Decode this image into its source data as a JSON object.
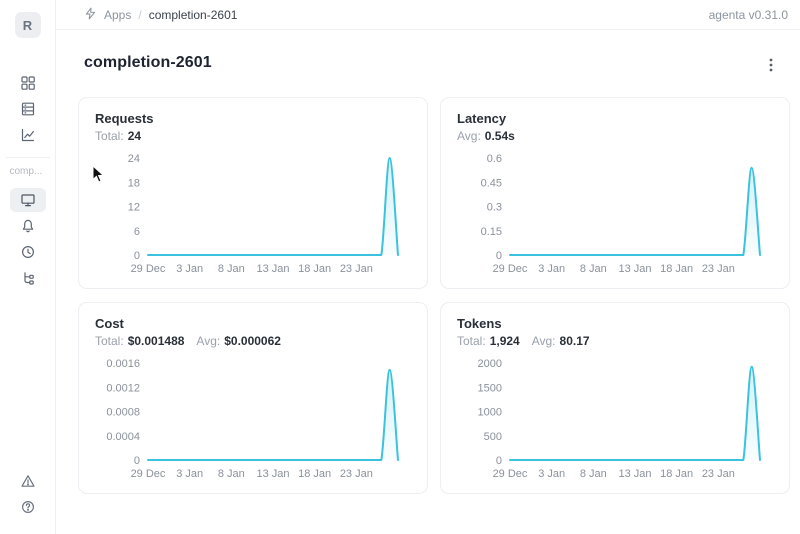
{
  "topbar": {
    "breadcrumb": {
      "icon": "zap-icon",
      "apps": "Apps",
      "separator": "/",
      "current": "completion-2601"
    },
    "version": "agenta v0.31.0"
  },
  "sidebar": {
    "avatar_letter": "R",
    "workspace_label": "comp...",
    "nav_top_icons": [
      "grid-icon",
      "table-rows-icon",
      "line-chart-icon"
    ],
    "nav_app_icons": [
      "monitor-icon (selected)",
      "bell-icon",
      "history-icon",
      "tree-icon"
    ],
    "nav_bottom_icons": [
      "warning-triangle-icon",
      "help-circle-icon"
    ]
  },
  "page": {
    "title": "completion-2601"
  },
  "colors": {
    "line": "#3ac2df",
    "fill_top": "rgba(58,194,223,0.22)",
    "fill_bottom": "rgba(58,194,223,0.03)"
  },
  "chart_data": [
    {
      "type": "area",
      "title": "Requests",
      "stats": [
        {
          "label": "Total:",
          "value": "24"
        }
      ],
      "y_ticks": [
        0,
        6,
        12,
        18,
        24
      ],
      "ylim": [
        0,
        24
      ],
      "x_ticks": [
        "29 Dec",
        "3 Jan",
        "8 Jan",
        "13 Jan",
        "18 Jan",
        "23 Jan"
      ],
      "x_tick_step_days": 5,
      "values": [
        0,
        0,
        0,
        0,
        0,
        0,
        0,
        0,
        0,
        0,
        0,
        0,
        0,
        0,
        0,
        0,
        0,
        0,
        0,
        0,
        0,
        0,
        0,
        0,
        0,
        0,
        0,
        0,
        0,
        24,
        0
      ]
    },
    {
      "type": "area",
      "title": "Latency",
      "stats": [
        {
          "label": "Avg:",
          "value": "0.54s"
        }
      ],
      "y_ticks": [
        0,
        0.15,
        0.3,
        0.45,
        0.6
      ],
      "ylim": [
        0,
        0.6
      ],
      "x_ticks": [
        "29 Dec",
        "3 Jan",
        "8 Jan",
        "13 Jan",
        "18 Jan",
        "23 Jan"
      ],
      "x_tick_step_days": 5,
      "values": [
        0,
        0,
        0,
        0,
        0,
        0,
        0,
        0,
        0,
        0,
        0,
        0,
        0,
        0,
        0,
        0,
        0,
        0,
        0,
        0,
        0,
        0,
        0,
        0,
        0,
        0,
        0,
        0,
        0,
        0.54,
        0
      ]
    },
    {
      "type": "area",
      "title": "Cost",
      "stats": [
        {
          "label": "Total:",
          "value": "$0.001488"
        },
        {
          "label": "Avg:",
          "value": "$0.000062"
        }
      ],
      "y_ticks": [
        0,
        0.0004,
        0.0008,
        0.0012,
        0.0016
      ],
      "ylim": [
        0,
        0.0016
      ],
      "x_ticks": [
        "29 Dec",
        "3 Jan",
        "8 Jan",
        "13 Jan",
        "18 Jan",
        "23 Jan"
      ],
      "x_tick_step_days": 5,
      "values": [
        0,
        0,
        0,
        0,
        0,
        0,
        0,
        0,
        0,
        0,
        0,
        0,
        0,
        0,
        0,
        0,
        0,
        0,
        0,
        0,
        0,
        0,
        0,
        0,
        0,
        0,
        0,
        0,
        0,
        0.001488,
        0
      ]
    },
    {
      "type": "area",
      "title": "Tokens",
      "stats": [
        {
          "label": "Total:",
          "value": "1,924"
        },
        {
          "label": "Avg:",
          "value": "80.17"
        }
      ],
      "y_ticks": [
        0,
        500,
        1000,
        1500,
        2000
      ],
      "ylim": [
        0,
        2000
      ],
      "x_ticks": [
        "29 Dec",
        "3 Jan",
        "8 Jan",
        "13 Jan",
        "18 Jan",
        "23 Jan"
      ],
      "x_tick_step_days": 5,
      "values": [
        0,
        0,
        0,
        0,
        0,
        0,
        0,
        0,
        0,
        0,
        0,
        0,
        0,
        0,
        0,
        0,
        0,
        0,
        0,
        0,
        0,
        0,
        0,
        0,
        0,
        0,
        0,
        0,
        0,
        1924,
        0
      ]
    }
  ]
}
